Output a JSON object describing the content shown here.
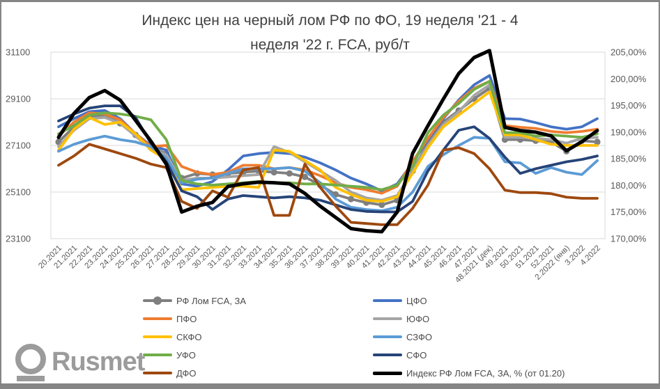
{
  "window": {
    "frame_color": "#858585",
    "background": "#ffffff"
  },
  "title": {
    "line1": "Индекс цен на черный лом РФ по ФО, 19 неделя '21 - 4",
    "line2": "неделя '22 г. FCA, руб/т"
  },
  "logo": {
    "text": "Rusmet"
  },
  "chart_data": {
    "type": "line",
    "title": "Индекс цен на черный лом РФ по ФО, 19 неделя '21 - 4 неделя '22 г. FCA, руб/т",
    "grid": true,
    "legend_position": "bottom",
    "categories": [
      "20.2021",
      "21.2021",
      "22.2021",
      "23.2021",
      "24.2021",
      "25.2021",
      "26.2021",
      "27.2021",
      "28.2021",
      "29.2021",
      "30.2021",
      "31.2021",
      "32.2021",
      "33.2021",
      "34.2021",
      "35.2021",
      "36.2021",
      "37.2021",
      "38.2021",
      "39.2021",
      "40.2021",
      "41.2021",
      "42.2021",
      "43.2021",
      "44.2021",
      "45.2021",
      "46.2021",
      "47.2021",
      "48.2021 (дек)",
      "49.2021",
      "50.2021",
      "51.2021",
      "52.2021",
      "2.2022 (янв)",
      "3.2022",
      "4.2022"
    ],
    "left_axis": {
      "min": 23100,
      "max": 31100,
      "step": 2000,
      "ticks": [
        "31100",
        "29100",
        "27100",
        "25100",
        "23100"
      ],
      "unit": "руб/т"
    },
    "right_axis": {
      "min": 170,
      "max": 205,
      "step": 5,
      "ticks": [
        "205,00%",
        "200,00%",
        "195,00%",
        "190,00%",
        "185,00%",
        "180,00%",
        "175,00%",
        "170,00%"
      ],
      "unit": "%"
    },
    "series": [
      {
        "name": "РФ Лом FCA, ЗА",
        "color": "#7F7F7F",
        "axis": "left",
        "marker": "circle",
        "values": [
          27250,
          27900,
          28350,
          28400,
          28050,
          27550,
          27000,
          26750,
          25700,
          25900,
          25850,
          25900,
          25950,
          26000,
          25950,
          25900,
          25750,
          25400,
          25000,
          24800,
          24650,
          24550,
          24750,
          26000,
          27200,
          28100,
          28600,
          29100,
          29550,
          27350,
          27350,
          27300,
          27250,
          26850,
          27300,
          27250
        ]
      },
      {
        "name": "ЦФО",
        "color": "#4472C4",
        "axis": "left",
        "values": [
          27900,
          28250,
          28550,
          28600,
          28250,
          27600,
          27100,
          26900,
          25450,
          25350,
          25550,
          26050,
          26650,
          26750,
          26800,
          26750,
          26600,
          26350,
          26050,
          25700,
          25450,
          25150,
          25450,
          26350,
          27350,
          28250,
          29050,
          29700,
          30100,
          28250,
          28230,
          28080,
          27900,
          27800,
          27900,
          28250
        ]
      },
      {
        "name": "ПФО",
        "color": "#ED7D31",
        "axis": "left",
        "values": [
          27500,
          28100,
          28500,
          28450,
          28200,
          27600,
          27050,
          27100,
          26200,
          25950,
          25850,
          25950,
          26250,
          26250,
          26100,
          26150,
          26050,
          25800,
          25500,
          25300,
          25200,
          25050,
          25350,
          26400,
          27400,
          28300,
          29000,
          29550,
          29850,
          27950,
          27880,
          27830,
          27700,
          27650,
          27700,
          27800
        ]
      },
      {
        "name": "ЮФО",
        "color": "#A5A5A5",
        "axis": "left",
        "values": [
          27050,
          27750,
          28250,
          28300,
          28050,
          27500,
          26950,
          26700,
          25600,
          25700,
          25700,
          25750,
          25800,
          25850,
          27050,
          26800,
          26400,
          26000,
          25600,
          25100,
          24850,
          24750,
          24950,
          26000,
          27100,
          28000,
          28550,
          29250,
          29700,
          27450,
          27450,
          27400,
          27350,
          27200,
          27400,
          27450
        ]
      },
      {
        "name": "СКФО",
        "color": "#FFC000",
        "axis": "left",
        "values": [
          26900,
          27800,
          28300,
          28000,
          28100,
          27600,
          26900,
          26500,
          25200,
          25250,
          25300,
          25350,
          25350,
          25300,
          26900,
          26850,
          26450,
          26050,
          25300,
          25000,
          24750,
          24700,
          24900,
          25900,
          27000,
          27900,
          28400,
          28900,
          29400,
          27550,
          27550,
          27350,
          27150,
          27100,
          27100,
          27100
        ]
      },
      {
        "name": "СЗФО",
        "color": "#5B9BD5",
        "axis": "left",
        "values": [
          26850,
          27150,
          27350,
          27500,
          27350,
          27250,
          27050,
          26550,
          25500,
          25650,
          25700,
          25900,
          26100,
          26100,
          26100,
          26150,
          26000,
          25500,
          24800,
          24450,
          24350,
          24300,
          24450,
          25100,
          26200,
          26700,
          27100,
          27450,
          27400,
          26400,
          26350,
          25900,
          26150,
          25950,
          25850,
          26450
        ]
      },
      {
        "name": "УФО",
        "color": "#70AD47",
        "axis": "left",
        "values": [
          27600,
          27950,
          28400,
          28500,
          28450,
          28350,
          28200,
          27350,
          25600,
          25450,
          25400,
          25450,
          25500,
          25550,
          25500,
          25500,
          25450,
          25450,
          25400,
          25350,
          25300,
          25200,
          25400,
          26200,
          27650,
          28400,
          28900,
          29500,
          29850,
          27650,
          27650,
          27500,
          27550,
          27500,
          27450,
          27600
        ]
      },
      {
        "name": "СФО",
        "color": "#264478",
        "axis": "left",
        "values": [
          28150,
          28450,
          28700,
          28800,
          28800,
          28300,
          27200,
          26400,
          25150,
          24900,
          24350,
          24800,
          24950,
          24900,
          24850,
          24900,
          24850,
          24750,
          24550,
          24350,
          24270,
          24250,
          24250,
          24700,
          26000,
          26900,
          27750,
          27900,
          27400,
          26600,
          25900,
          26100,
          26250,
          26400,
          26500,
          26650
        ]
      },
      {
        "name": "ДФО",
        "color": "#9E480E",
        "axis": "left",
        "values": [
          26250,
          26650,
          27150,
          26950,
          26750,
          26550,
          26300,
          26150,
          24700,
          24400,
          25150,
          24880,
          26050,
          26150,
          24100,
          24100,
          26300,
          25300,
          24500,
          23800,
          23750,
          23700,
          23700,
          24400,
          25400,
          26900,
          27000,
          26750,
          26100,
          25180,
          25080,
          25080,
          25030,
          24880,
          24830,
          24830
        ]
      },
      {
        "name": "Индекс РФ Лом FCA, ЗА, % (от 01.20)",
        "color": "#000000",
        "axis": "right",
        "values": [
          189.0,
          193.5,
          196.5,
          197.8,
          196.0,
          192.2,
          188.3,
          184.0,
          175.0,
          176.1,
          176.8,
          179.8,
          180.3,
          180.6,
          180.5,
          180.3,
          178.5,
          176.1,
          174.0,
          171.9,
          171.5,
          171.3,
          175.0,
          186.0,
          191.2,
          196.2,
          201.0,
          204.0,
          205.3,
          190.9,
          190.3,
          190.0,
          189.3,
          186.5,
          188.2,
          190.3
        ]
      }
    ]
  },
  "legend": {
    "items": [
      {
        "label": "РФ Лом FCA, ЗА",
        "color": "#7F7F7F",
        "marker": true
      },
      {
        "label": "ЦФО",
        "color": "#4472C4",
        "marker": false
      },
      {
        "label": "ПФО",
        "color": "#ED7D31",
        "marker": false
      },
      {
        "label": "ЮФО",
        "color": "#A5A5A5",
        "marker": false
      },
      {
        "label": "СКФО",
        "color": "#FFC000",
        "marker": false
      },
      {
        "label": "СЗФО",
        "color": "#5B9BD5",
        "marker": false
      },
      {
        "label": "УФО",
        "color": "#70AD47",
        "marker": false
      },
      {
        "label": "СФО",
        "color": "#264478",
        "marker": false
      },
      {
        "label": "ДФО",
        "color": "#9E480E",
        "marker": false
      },
      {
        "label": "Индекс РФ Лом FCA, ЗА, % (от 01.20)",
        "color": "#000000",
        "marker": false
      }
    ]
  }
}
